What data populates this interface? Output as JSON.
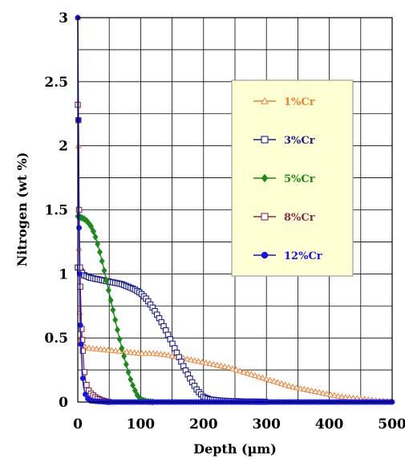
{
  "chart_data": {
    "type": "scatter",
    "title": "",
    "xlabel": "Depth (µm)",
    "ylabel": "Nitrogen (wt %)",
    "xlim": [
      0,
      500
    ],
    "ylim": [
      0,
      3
    ],
    "x_ticks": [
      "0",
      "100",
      "200",
      "300",
      "400",
      "500"
    ],
    "y_ticks": [
      "0",
      "0.5",
      "1",
      "1.5",
      "2",
      "2.5",
      "3"
    ],
    "grid": true,
    "legend_position": "right",
    "series": [
      {
        "name": "1%Cr",
        "color": "#f08030",
        "marker": "open-triangle",
        "points": [
          [
            0,
            3.0
          ],
          [
            1,
            2.0
          ],
          [
            2,
            1.2
          ],
          [
            3,
            0.7
          ],
          [
            5,
            0.5
          ],
          [
            8,
            0.45
          ],
          [
            12,
            0.43
          ],
          [
            20,
            0.42
          ],
          [
            40,
            0.41
          ],
          [
            60,
            0.4
          ],
          [
            80,
            0.39
          ],
          [
            100,
            0.38
          ],
          [
            120,
            0.38
          ],
          [
            140,
            0.37
          ],
          [
            160,
            0.35
          ],
          [
            180,
            0.33
          ],
          [
            200,
            0.31
          ],
          [
            220,
            0.29
          ],
          [
            240,
            0.27
          ],
          [
            260,
            0.24
          ],
          [
            280,
            0.21
          ],
          [
            300,
            0.18
          ],
          [
            320,
            0.15
          ],
          [
            340,
            0.12
          ],
          [
            360,
            0.1
          ],
          [
            380,
            0.08
          ],
          [
            400,
            0.06
          ],
          [
            420,
            0.04
          ],
          [
            440,
            0.03
          ],
          [
            460,
            0.02
          ],
          [
            480,
            0.01
          ],
          [
            500,
            0.005
          ]
        ]
      },
      {
        "name": "3%Cr",
        "color": "#1c1c8c",
        "marker": "open-square",
        "points": [
          [
            0,
            1.05
          ],
          [
            5,
            1.02
          ],
          [
            10,
            0.99
          ],
          [
            20,
            0.97
          ],
          [
            30,
            0.96
          ],
          [
            40,
            0.95
          ],
          [
            50,
            0.94
          ],
          [
            60,
            0.93
          ],
          [
            70,
            0.92
          ],
          [
            80,
            0.9
          ],
          [
            90,
            0.88
          ],
          [
            100,
            0.85
          ],
          [
            110,
            0.8
          ],
          [
            120,
            0.73
          ],
          [
            130,
            0.65
          ],
          [
            140,
            0.56
          ],
          [
            150,
            0.46
          ],
          [
            160,
            0.36
          ],
          [
            170,
            0.26
          ],
          [
            180,
            0.17
          ],
          [
            190,
            0.09
          ],
          [
            200,
            0.04
          ],
          [
            210,
            0.02
          ],
          [
            230,
            0.01
          ],
          [
            260,
            0.005
          ],
          [
            300,
            0.002
          ]
        ]
      },
      {
        "name": "5%Cr",
        "color": "#1a8a1a",
        "marker": "filled-diamond",
        "points": [
          [
            0,
            1.45
          ],
          [
            5,
            1.44
          ],
          [
            10,
            1.43
          ],
          [
            15,
            1.41
          ],
          [
            20,
            1.38
          ],
          [
            25,
            1.33
          ],
          [
            30,
            1.26
          ],
          [
            35,
            1.17
          ],
          [
            40,
            1.07
          ],
          [
            45,
            0.96
          ],
          [
            50,
            0.85
          ],
          [
            55,
            0.74
          ],
          [
            60,
            0.63
          ],
          [
            65,
            0.52
          ],
          [
            70,
            0.42
          ],
          [
            75,
            0.33
          ],
          [
            80,
            0.24
          ],
          [
            85,
            0.16
          ],
          [
            90,
            0.1
          ],
          [
            95,
            0.05
          ],
          [
            100,
            0.02
          ],
          [
            110,
            0.005
          ],
          [
            120,
            0.0
          ]
        ]
      },
      {
        "name": "8%Cr",
        "color": "#8b2a4a",
        "marker": "open-square",
        "points": [
          [
            0,
            2.32
          ],
          [
            1,
            2.2
          ],
          [
            2,
            1.5
          ],
          [
            4,
            0.9
          ],
          [
            6,
            0.57
          ],
          [
            8,
            0.4
          ],
          [
            10,
            0.25
          ],
          [
            13,
            0.15
          ],
          [
            16,
            0.1
          ],
          [
            20,
            0.07
          ],
          [
            25,
            0.05
          ],
          [
            30,
            0.03
          ],
          [
            35,
            0.02
          ],
          [
            40,
            0.01
          ],
          [
            50,
            0.0
          ]
        ]
      },
      {
        "name": "12%Cr",
        "color": "#1414e6",
        "marker": "filled-circle",
        "points": [
          [
            0,
            3.0
          ],
          [
            1,
            2.2
          ],
          [
            2,
            1.36
          ],
          [
            3,
            1.0
          ],
          [
            4,
            0.6
          ],
          [
            5,
            0.45
          ],
          [
            7,
            0.25
          ],
          [
            9,
            0.12
          ],
          [
            12,
            0.06
          ],
          [
            15,
            0.03
          ],
          [
            20,
            0.01
          ],
          [
            30,
            0.005
          ],
          [
            50,
            0.0
          ],
          [
            100,
            0.0
          ],
          [
            200,
            0.0
          ],
          [
            300,
            0.0
          ],
          [
            400,
            0.0
          ],
          [
            500,
            0.0
          ]
        ]
      }
    ]
  }
}
